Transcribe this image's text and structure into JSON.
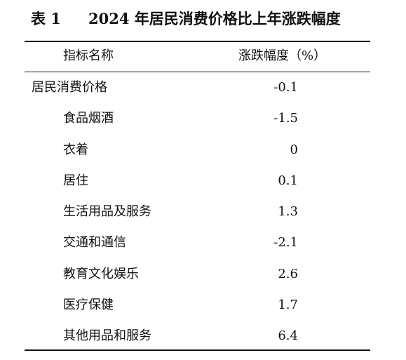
{
  "title": {
    "number": "表 1",
    "text": "2024 年居民消费价格比上年涨跌幅度"
  },
  "table": {
    "headers": {
      "name": "指标名称",
      "value": "涨跌幅度（%）"
    },
    "rows": [
      {
        "name": "居民消费价格",
        "value": "-0.1",
        "level": 0
      },
      {
        "name": "食品烟酒",
        "value": "-1.5",
        "level": 1
      },
      {
        "name": "衣着",
        "value": "0",
        "level": 1
      },
      {
        "name": "居住",
        "value": "0.1",
        "level": 1
      },
      {
        "name": "生活用品及服务",
        "value": "1.3",
        "level": 1
      },
      {
        "name": "交通和通信",
        "value": "-2.1",
        "level": 1
      },
      {
        "name": "教育文化娱乐",
        "value": "2.6",
        "level": 1
      },
      {
        "name": "医疗保健",
        "value": "1.7",
        "level": 1
      },
      {
        "name": "其他用品和服务",
        "value": "6.4",
        "level": 1
      }
    ]
  }
}
